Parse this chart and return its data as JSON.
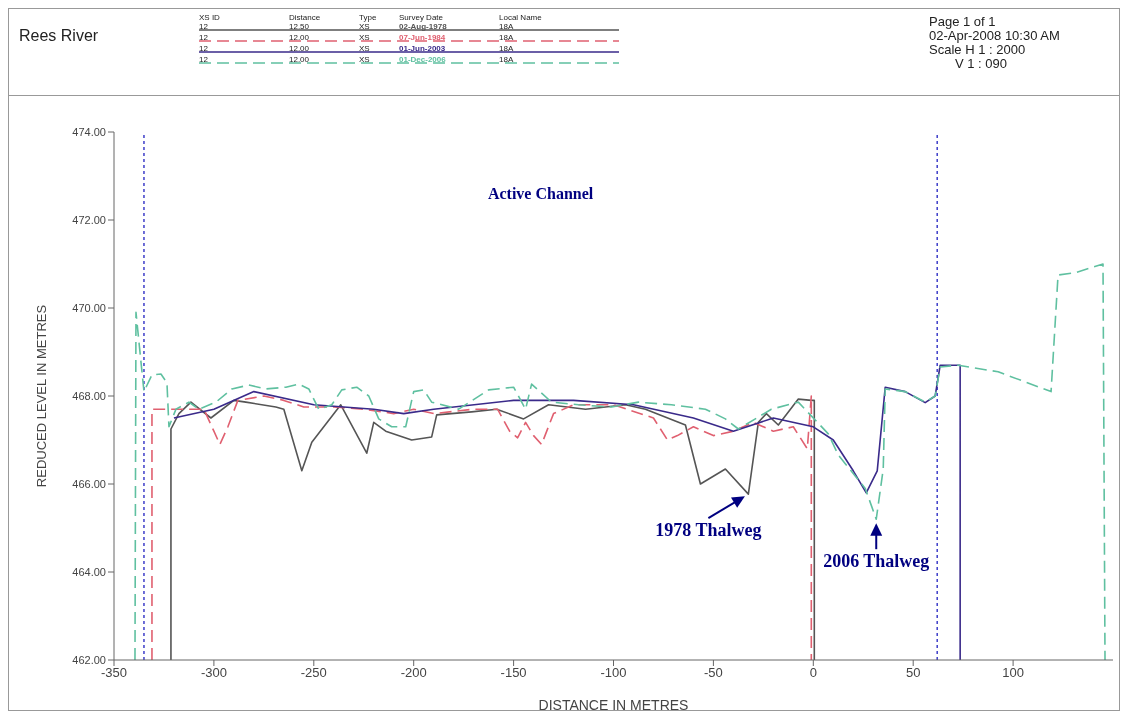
{
  "chart_data": {
    "type": "line",
    "title": "Rees River",
    "xlabel": "DISTANCE IN METRES",
    "ylabel": "REDUCED LEVEL IN METRES",
    "xlim": [
      -350,
      150
    ],
    "xticks": [
      -350,
      -300,
      -250,
      -200,
      -150,
      -100,
      -50,
      0,
      50,
      100
    ],
    "ylim": [
      462,
      474
    ],
    "yticks": [
      {
        "value": 462,
        "label": "462.00"
      },
      {
        "value": 464,
        "label": "464.00"
      },
      {
        "value": 466,
        "label": "466.00"
      },
      {
        "value": 468,
        "label": "468.00"
      },
      {
        "value": 470,
        "label": "470.00"
      },
      {
        "value": 472,
        "label": "472.00"
      },
      {
        "value": 474,
        "label": "474.00"
      }
    ],
    "grid": false,
    "legend": "top",
    "marker": "none",
    "series": [
      {
        "name": "02-Aug-1978",
        "color": "#555555",
        "line_style": "solid",
        "x": [
          -321.5,
          -321.5,
          -317.5,
          -311.5,
          -301.5,
          -290,
          -284,
          -269,
          -265,
          -256,
          -251,
          -236.5,
          -223.5,
          -220,
          -214,
          -201,
          -191,
          -188.5,
          -171,
          -158.5,
          -145,
          -132.5,
          -114,
          -94,
          -84,
          -64,
          -56.5,
          -44,
          -32.5,
          -27.5,
          -23.5,
          -17.5,
          -7.5,
          -1,
          0.5,
          0.5
        ],
        "values": [
          462,
          467.25,
          467.6,
          467.86,
          467.5,
          467.9,
          467.86,
          467.75,
          467.7,
          466.3,
          466.95,
          467.8,
          466.7,
          467.4,
          467.2,
          467,
          467.07,
          467.57,
          467.64,
          467.7,
          467.48,
          467.8,
          467.7,
          467.8,
          467.7,
          467.34,
          466,
          466.34,
          465.77,
          467.4,
          467.6,
          467.34,
          467.93,
          467.9,
          467.9,
          462
        ]
      },
      {
        "name": "07-Jun-1984",
        "color": "#e06070",
        "line_style": "dashed",
        "x": [
          -331,
          -331,
          -310,
          -305,
          -300,
          -297,
          -293,
          -288,
          -275,
          -265,
          -255,
          -240,
          -225,
          -210,
          -200,
          -190,
          -170,
          -158,
          -152,
          -148,
          -144,
          -140,
          -136,
          -130,
          -120,
          -100,
          -80,
          -73,
          -68,
          -60,
          -50,
          -40,
          -30,
          -20,
          -10,
          -3,
          -1,
          -1
        ],
        "values": [
          462,
          467.7,
          467.7,
          467.7,
          467.2,
          466.9,
          467.3,
          467.9,
          468,
          467.9,
          467.75,
          467.75,
          467.7,
          467.6,
          467.7,
          467.6,
          467.7,
          467.7,
          467.2,
          467.05,
          467.4,
          467.1,
          466.9,
          467.6,
          467.8,
          467.8,
          467.5,
          467,
          467.1,
          467.3,
          467.1,
          467.2,
          467.4,
          467.2,
          467.3,
          466.8,
          468,
          462
        ]
      },
      {
        "name": "01-Jun-2003",
        "color": "#3a2a8a",
        "line_style": "solid",
        "x": [
          -320,
          -300,
          -280,
          -250,
          -220,
          -205,
          -190,
          -150,
          -120,
          -90,
          -60,
          -40,
          -20,
          0,
          10,
          20,
          26.5,
          32,
          36,
          46,
          56,
          61,
          63.5,
          73.5,
          73.5
        ],
        "values": [
          467.5,
          467.7,
          468.1,
          467.8,
          467.7,
          467.6,
          467.7,
          467.9,
          467.9,
          467.8,
          467.5,
          467.2,
          467.5,
          467.3,
          467,
          466.3,
          465.8,
          466.3,
          468.2,
          468.1,
          467.85,
          468,
          468.7,
          468.7,
          462
        ]
      },
      {
        "name": "01-Dec-2006",
        "color": "#5fc0a0",
        "line_style": "dashed",
        "x": [
          -339.5,
          -339,
          -335,
          -331,
          -326.5,
          -323.5,
          -322.5,
          -319,
          -312.5,
          -307.5,
          -299,
          -291,
          -282.5,
          -274,
          -264,
          -257.5,
          -252.5,
          -247.5,
          -241,
          -236,
          -228.5,
          -222.5,
          -217.5,
          -211,
          -204,
          -200,
          -195,
          -191,
          -177.5,
          -162.5,
          -150,
          -144,
          -141,
          -131,
          -117.5,
          -101,
          -87.5,
          -71,
          -54,
          -44,
          -37.5,
          -29,
          -21,
          -7.5,
          7.5,
          12.5,
          26,
          31.5,
          35,
          36,
          46,
          56,
          61,
          63.5,
          72.5,
          92.5,
          119,
          122.5,
          131,
          145,
          146
        ],
        "values": [
          462,
          469.9,
          468.1,
          468.48,
          468.5,
          468.3,
          467.3,
          467.7,
          467.86,
          467.7,
          467.86,
          468.16,
          468.25,
          468.16,
          468.2,
          468.27,
          468.16,
          467.7,
          467.8,
          468.14,
          468.2,
          468,
          467.48,
          467.3,
          467.3,
          468.1,
          468.14,
          467.86,
          467.7,
          468.14,
          468.2,
          467.7,
          468.27,
          467.86,
          467.8,
          467.75,
          467.86,
          467.8,
          467.7,
          467.48,
          467.25,
          467.48,
          467.7,
          467.86,
          467.14,
          466.66,
          465.9,
          465.2,
          466.34,
          468.16,
          468.1,
          467.86,
          468,
          468.66,
          468.7,
          468.55,
          468.1,
          470.75,
          470.8,
          471,
          462
        ]
      }
    ],
    "ref_lines": [
      {
        "axis": "x",
        "value": -335,
        "color": "#2020c0",
        "line_style": "dotted"
      },
      {
        "axis": "x",
        "value": 62,
        "color": "#2020c0",
        "line_style": "dotted"
      }
    ],
    "annotations": [
      "XS ID",
      "Distance",
      "Type",
      "Survey Date",
      "Local Name",
      "12",
      "12.50",
      "XS",
      "18A",
      "12",
      "12.00",
      "XS",
      "18A",
      "12",
      "12.00",
      "XS",
      "18A",
      "12",
      "12.00",
      "XS",
      "18A",
      "Page 1 of 1",
      "02-Apr-2008 10:30 AM",
      "Scale H 1 : 2000",
      "V 1 : 090",
      "Active Channel",
      {
        "text": "1978 Thalweg",
        "x": -32.5,
        "y": 465.77
      },
      {
        "text": "2006 Thalweg",
        "x": 31.5,
        "y": 465.2
      }
    ]
  }
}
